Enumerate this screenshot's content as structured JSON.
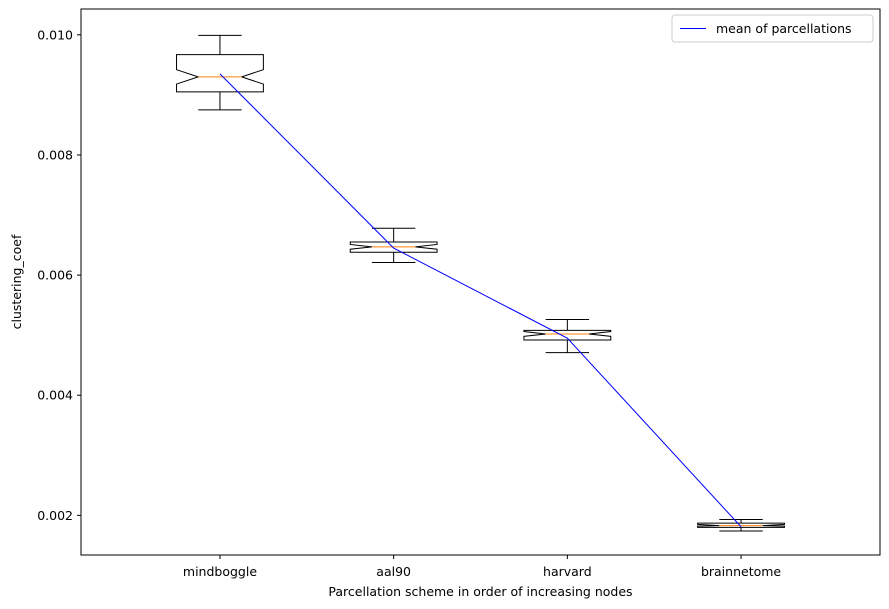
{
  "chart_data": {
    "type": "box",
    "notched": true,
    "categories": [
      "mindboggle",
      "aal90",
      "harvard",
      "brainnetome"
    ],
    "boxes": [
      {
        "category": "mindboggle",
        "whisker_low": 0.00875,
        "q1": 0.00905,
        "median": 0.0093,
        "q3": 0.00967,
        "whisker_high": 0.00999,
        "notch_low": 0.00918,
        "notch_high": 0.00942
      },
      {
        "category": "aal90",
        "whisker_low": 0.00621,
        "q1": 0.00638,
        "median": 0.00647,
        "q3": 0.00655,
        "whisker_high": 0.00678,
        "notch_low": 0.00643,
        "notch_high": 0.00651
      },
      {
        "category": "harvard",
        "whisker_low": 0.00471,
        "q1": 0.00492,
        "median": 0.00502,
        "q3": 0.00508,
        "whisker_high": 0.00526,
        "notch_low": 0.00498,
        "notch_high": 0.00506
      },
      {
        "category": "brainnetome",
        "whisker_low": 0.00174,
        "q1": 0.0018,
        "median": 0.00183,
        "q3": 0.00187,
        "whisker_high": 0.00193,
        "notch_low": 0.00182,
        "notch_high": 0.00185
      }
    ],
    "series": [
      {
        "name": "mean of parcellations",
        "values": [
          0.00935,
          0.00645,
          0.00495,
          0.00181
        ],
        "color": "#0000ff"
      }
    ],
    "xlabel": "Parcellation scheme in order of increasing nodes",
    "ylabel": "clustering_coef",
    "ylim": [
      0.00134,
      0.01043
    ],
    "yticks": [
      0.002,
      0.004,
      0.006,
      0.008,
      0.01
    ],
    "ytick_labels": [
      "0.002",
      "0.004",
      "0.006",
      "0.008",
      "0.010"
    ],
    "grid": false,
    "legend": {
      "position": "top-right",
      "entries": [
        "mean of parcellations"
      ]
    },
    "colors": {
      "median": "#ff7f0e",
      "box": "#000000",
      "mean_line": "#0000ff"
    }
  }
}
